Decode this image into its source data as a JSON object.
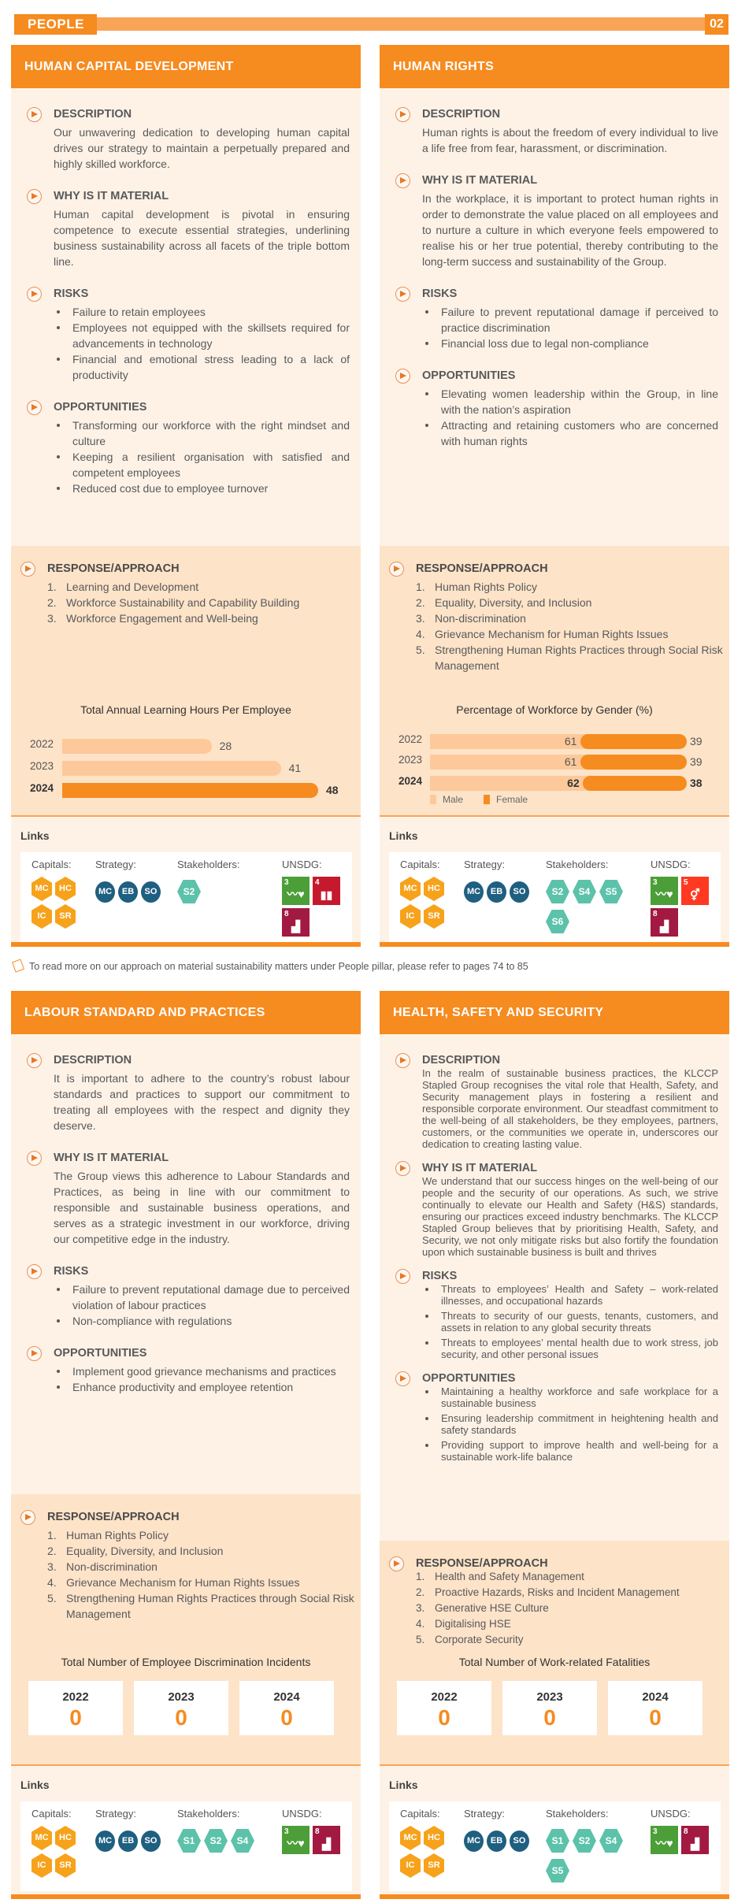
{
  "header": {
    "section": "PEOPLE",
    "page": "02"
  },
  "labels": {
    "description": "DESCRIPTION",
    "why": "WHY IS IT MATERIAL",
    "risks": "RISKS",
    "opportunities": "OPPORTUNITIES",
    "response": "RESPONSE/APPROACH",
    "links": "Links",
    "capitals": "Capitals:",
    "strategy": "Strategy:",
    "stakeholders": "Stakeholders:",
    "unsdg": "UNSDG:"
  },
  "footnote": "To read more on our approach on material sustainability matters under People pillar, please refer to pages 74 to 85",
  "colors": {
    "accent": "#f68b1f",
    "light_bar": "#f9a456",
    "body_bg": "#fef2e6",
    "band_bg": "#fde3c8",
    "male": "#fdc99a",
    "female": "#f68b1f",
    "capitals": "#f7a21b",
    "strategy": "#1f5f80",
    "stakeholders": "#5cc2aa"
  },
  "cards": [
    {
      "title": "HUMAN CAPITAL DEVELOPMENT",
      "description": "Our unwavering dedication to developing human capital drives our strategy to maintain a perpetually prepared and highly skilled workforce.",
      "why": "Human capital development is pivotal in ensuring competence to execute essential strategies, underlining business sustainability across all facets of the triple bottom line.",
      "risks": [
        "Failure to retain employees",
        "Employees not equipped with the skillsets required for advancements in technology",
        "Financial and emotional stress leading to a lack of productivity"
      ],
      "opportunities": [
        "Transforming our workforce with the right mindset and culture",
        "Keeping a resilient organisation with satisfied and competent employees",
        "Reduced cost due to employee turnover"
      ],
      "response": [
        "Learning and Development",
        "Workforce Sustainability and Capability Building",
        "Workforce Engagement and Well-being"
      ],
      "links": {
        "capitals": [
          "MC",
          "HC",
          "IC",
          "SR"
        ],
        "strategy": [
          "MC",
          "EB",
          "SO"
        ],
        "stakeholders": [
          "S2"
        ],
        "unsdg": [
          {
            "num": "3",
            "color": "#4c9f38",
            "icon": "heartbeat-icon"
          },
          {
            "num": "4",
            "color": "#c5192d",
            "icon": "book-icon"
          },
          {
            "num": "8",
            "color": "#a21942",
            "icon": "growth-chart-icon"
          }
        ]
      }
    },
    {
      "title": "HUMAN RIGHTS",
      "description": "Human rights is about the freedom of every individual to live a life free from fear, harassment, or discrimination.",
      "why": "In the workplace, it is important to protect human rights in order to demonstrate the value placed on all employees and to nurture a culture in which everyone feels empowered to realise his or her true potential, thereby contributing to the long-term success and sustainability of the Group.",
      "risks": [
        "Failure to prevent reputational damage if perceived to practice discrimination",
        "Financial loss due to legal non-compliance"
      ],
      "opportunities": [
        "Elevating women leadership within the Group, in line with the nation’s aspiration",
        "Attracting and retaining customers who are concerned with human rights"
      ],
      "response": [
        "Human Rights Policy",
        "Equality, Diversity, and Inclusion",
        "Non-discrimination",
        "Grievance Mechanism for Human Rights Issues",
        "Strengthening Human Rights Practices through Social Risk Management"
      ],
      "links": {
        "capitals": [
          "MC",
          "HC",
          "IC",
          "SR"
        ],
        "strategy": [
          "MC",
          "EB",
          "SO"
        ],
        "stakeholders": [
          "S2",
          "S4",
          "S5",
          "S6"
        ],
        "unsdg": [
          {
            "num": "3",
            "color": "#4c9f38",
            "icon": "heartbeat-icon"
          },
          {
            "num": "5",
            "color": "#ff3a21",
            "icon": "gender-equality-icon"
          },
          {
            "num": "8",
            "color": "#a21942",
            "icon": "growth-chart-icon"
          }
        ]
      }
    },
    {
      "title": "LABOUR STANDARD AND PRACTICES",
      "description": "It is important to adhere to the country’s robust labour standards and practices to support our commitment to treating all employees with the respect and dignity they deserve.",
      "why": "The Group views this adherence to Labour Standards and Practices, as being in line with our commitment to responsible and sustainable business operations, and serves as a strategic investment in our workforce, driving our competitive edge in the industry.",
      "risks": [
        "Failure to prevent reputational damage due to perceived violation of labour practices",
        "Non-compliance with regulations"
      ],
      "opportunities": [
        "Implement good grievance mechanisms and practices",
        "Enhance productivity and employee retention"
      ],
      "response": [
        "Human Rights Policy",
        "Equality, Diversity, and Inclusion",
        "Non-discrimination",
        "Grievance Mechanism for Human Rights Issues",
        "Strengthening Human Rights Practices through Social Risk Management"
      ],
      "links": {
        "capitals": [
          "MC",
          "HC",
          "IC",
          "SR"
        ],
        "strategy": [
          "MC",
          "EB",
          "SO"
        ],
        "stakeholders": [
          "S1",
          "S2",
          "S4"
        ],
        "unsdg": [
          {
            "num": "3",
            "color": "#4c9f38",
            "icon": "heartbeat-icon"
          },
          {
            "num": "8",
            "color": "#a21942",
            "icon": "growth-chart-icon"
          }
        ]
      }
    },
    {
      "title": "HEALTH, SAFETY AND SECURITY",
      "description": "In the realm of sustainable business practices, the KLCCP Stapled Group recognises the vital role that Health, Safety, and Security management plays in fostering a resilient and responsible corporate environment. Our steadfast commitment to the well-being of all stakeholders, be they employees, partners, customers, or the communities we operate in, underscores our dedication to creating lasting value.",
      "why": "We understand that our success hinges on the well-being of our people and the security of our operations. As such, we strive continually to elevate our Health and Safety (H&S) standards, ensuring our practices exceed industry benchmarks. The KLCCP Stapled Group believes that by prioritising Health, Safety, and Security, we not only mitigate risks but also fortify the foundation upon which sustainable business is built and thrives",
      "risks": [
        "Threats to employees’ Health and Safety – work-related illnesses, and occupational hazards",
        "Threats to security of our guests, tenants, customers, and assets in relation to any global security threats",
        "Threats to employees’ mental health due to work stress, job security, and other personal issues"
      ],
      "opportunities": [
        "Maintaining a healthy workforce and safe workplace for a sustainable business",
        "Ensuring leadership commitment in heightening health and safety standards",
        "Providing support to improve health and well-being for a sustainable work-life balance"
      ],
      "response": [
        "Health and Safety Management",
        "Proactive Hazards, Risks and Incident Management",
        "Generative HSE Culture",
        "Digitalising HSE",
        "Corporate Security"
      ],
      "links": {
        "capitals": [
          "MC",
          "HC",
          "IC",
          "SR"
        ],
        "strategy": [
          "MC",
          "EB",
          "SO"
        ],
        "stakeholders": [
          "S1",
          "S2",
          "S4",
          "S5"
        ],
        "unsdg": [
          {
            "num": "3",
            "color": "#4c9f38",
            "icon": "heartbeat-icon"
          },
          {
            "num": "8",
            "color": "#a21942",
            "icon": "growth-chart-icon"
          }
        ]
      }
    }
  ],
  "chart_data": [
    {
      "type": "bar",
      "orientation": "horizontal",
      "title": "Total Annual Learning Hours Per Employee",
      "categories": [
        "2022",
        "2023",
        "2024"
      ],
      "values": [
        28,
        41,
        48
      ],
      "highlight": "2024"
    },
    {
      "type": "bar",
      "orientation": "horizontal",
      "stacked": true,
      "title": "Percentage of Workforce by Gender (%)",
      "categories": [
        "2022",
        "2023",
        "2024"
      ],
      "series": [
        {
          "name": "Male",
          "values": [
            61,
            61,
            62
          ]
        },
        {
          "name": "Female",
          "values": [
            39,
            39,
            38
          ]
        }
      ],
      "legend": "bottom-left",
      "highlight": "2024"
    },
    {
      "type": "table",
      "title": "Total Number of Employee Discrimination Incidents",
      "categories": [
        "2022",
        "2023",
        "2024"
      ],
      "values": [
        0,
        0,
        0
      ]
    },
    {
      "type": "table",
      "title": "Total Number of Work-related Fatalities",
      "categories": [
        "2022",
        "2023",
        "2024"
      ],
      "values": [
        0,
        0,
        0
      ]
    }
  ]
}
